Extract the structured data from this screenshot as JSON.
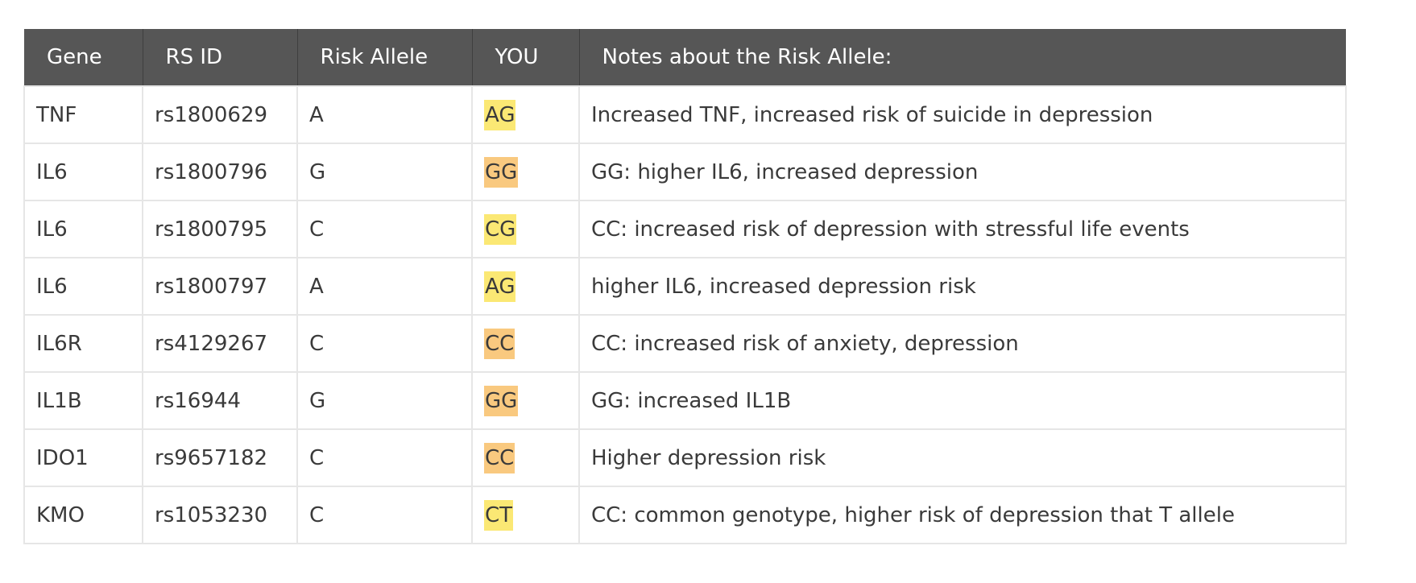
{
  "headers": {
    "gene": "Gene",
    "rs_id": "RS ID",
    "risk_allele": "Risk Allele",
    "you": "YOU",
    "notes": "Notes about the Risk Allele:"
  },
  "colors": {
    "header_bg": "#565656",
    "heterozygous_highlight": "#fbe874",
    "homozygous_highlight": "#f9c97f"
  },
  "rows": [
    {
      "gene": "TNF",
      "rs_id": "rs1800629",
      "risk_allele": "A",
      "you": "AG",
      "highlight": "hetero",
      "notes": "Increased TNF, increased risk of suicide in depression"
    },
    {
      "gene": "IL6",
      "rs_id": "rs1800796",
      "risk_allele": "G",
      "you": "GG",
      "highlight": "homo",
      "notes": "GG: higher IL6, increased depression"
    },
    {
      "gene": "IL6",
      "rs_id": "rs1800795",
      "risk_allele": "C",
      "you": "CG",
      "highlight": "hetero",
      "notes": "CC: increased risk of depression with stressful life events"
    },
    {
      "gene": "IL6",
      "rs_id": "rs1800797",
      "risk_allele": "A",
      "you": "AG",
      "highlight": "hetero",
      "notes": "higher IL6, increased depression risk"
    },
    {
      "gene": "IL6R",
      "rs_id": "rs4129267",
      "risk_allele": "C",
      "you": "CC",
      "highlight": "homo",
      "notes": "CC: increased risk of anxiety, depression"
    },
    {
      "gene": "IL1B",
      "rs_id": "rs16944",
      "risk_allele": "G",
      "you": "GG",
      "highlight": "homo",
      "notes": "GG: increased IL1B"
    },
    {
      "gene": "IDO1",
      "rs_id": "rs9657182",
      "risk_allele": "C",
      "you": "CC",
      "highlight": "homo",
      "notes": "Higher depression risk"
    },
    {
      "gene": "KMO",
      "rs_id": "rs1053230",
      "risk_allele": "C",
      "you": "CT",
      "highlight": "hetero",
      "notes": "CC: common genotype,  higher risk of depression that T allele"
    }
  ]
}
